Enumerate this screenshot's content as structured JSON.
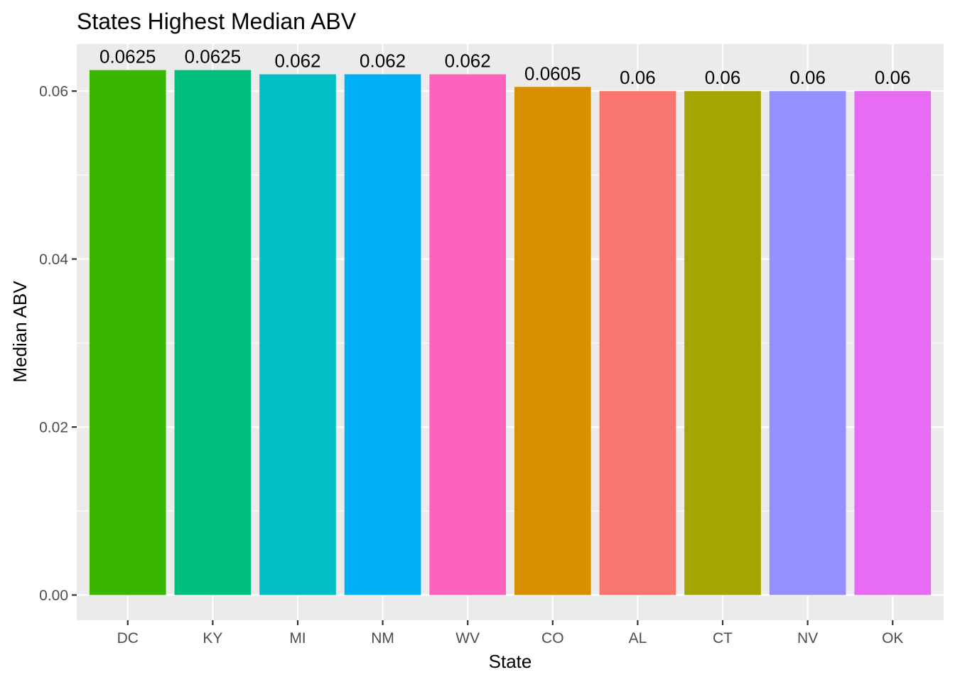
{
  "chart_data": {
    "type": "bar",
    "title": "States Highest Median ABV",
    "xlabel": "State",
    "ylabel": "Median ABV",
    "categories": [
      "DC",
      "KY",
      "MI",
      "NM",
      "WV",
      "CO",
      "AL",
      "CT",
      "NV",
      "OK"
    ],
    "values": [
      0.0625,
      0.0625,
      0.062,
      0.062,
      0.062,
      0.0605,
      0.06,
      0.06,
      0.06,
      0.06
    ],
    "value_labels": [
      "0.0625",
      "0.0625",
      "0.062",
      "0.062",
      "0.062",
      "0.0605",
      "0.06",
      "0.06",
      "0.06",
      "0.06"
    ],
    "colors": [
      "#39B600",
      "#00BF7D",
      "#00BFC4",
      "#00B0F6",
      "#FF62BC",
      "#D89000",
      "#F8766D",
      "#A3A500",
      "#9590FF",
      "#E76BF3"
    ],
    "ylim": [
      -0.003,
      0.0656
    ],
    "yticks": [
      0.0,
      0.02,
      0.04,
      0.06
    ],
    "ytick_labels": [
      "0.00",
      "0.02",
      "0.04",
      "0.06"
    ],
    "grid": true,
    "legend": "none",
    "panel_background": "#EBEBEB",
    "grid_color": "#FFFFFF"
  }
}
